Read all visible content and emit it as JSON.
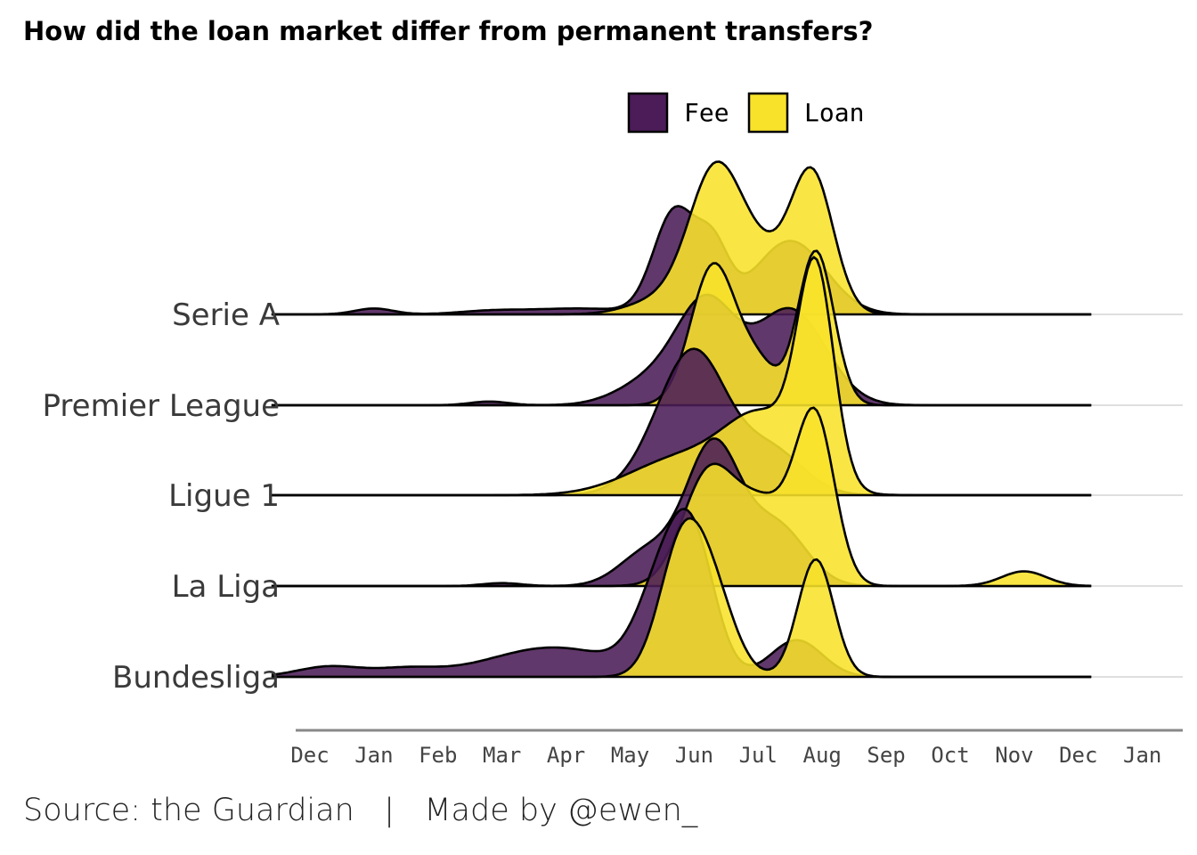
{
  "title": "How did the loan market differ from permanent transfers?",
  "caption": "Source: the Guardian   |   Made by @ewen_",
  "colors": {
    "fee": "#4b1c57",
    "loan": "#f8e22a",
    "outline": "#000000",
    "grid": "#cccccc",
    "axis": "#888888"
  },
  "chart_data": {
    "type": "ridgeline",
    "categories": [
      "Serie A",
      "Premier League",
      "Ligue 1",
      "La Liga",
      "Bundesliga"
    ],
    "x_ticks": [
      "Dec",
      "Jan",
      "Feb",
      "Mar",
      "Apr",
      "May",
      "Jun",
      "Jul",
      "Aug",
      "Sep",
      "Oct",
      "Nov",
      "Dec",
      "Jan"
    ],
    "xlim": [
      0.4,
      13.4
    ],
    "curve_range": [
      0.4,
      13.2
    ],
    "legend": {
      "position": "top",
      "entries": [
        "Fee",
        "Loan"
      ]
    },
    "series": [
      {
        "name": "Fee",
        "ridges": [
          {
            "category": "Serie A",
            "peaks": [
              [
                2.0,
                0.04,
                0.3
              ],
              [
                3.8,
                0.02,
                0.5
              ],
              [
                5.2,
                0.04,
                0.8
              ],
              [
                6.7,
                0.7,
                0.33
              ],
              [
                7.3,
                0.4,
                0.25
              ],
              [
                8.5,
                0.5,
                0.55
              ]
            ]
          },
          {
            "category": "Premier League",
            "peaks": [
              [
                3.8,
                0.025,
                0.3
              ],
              [
                6.4,
                0.18,
                0.55
              ],
              [
                7.2,
                0.65,
                0.45
              ],
              [
                8.5,
                0.65,
                0.55
              ]
            ]
          },
          {
            "category": "Ligue 1",
            "peaks": [
              [
                6.5,
                0.22,
                0.5
              ],
              [
                7.05,
                0.85,
                0.5
              ],
              [
                8.2,
                0.3,
                0.5
              ]
            ]
          },
          {
            "category": "La Liga",
            "peaks": [
              [
                4.0,
                0.02,
                0.3
              ],
              [
                6.3,
                0.24,
                0.45
              ],
              [
                7.3,
                0.95,
                0.42
              ],
              [
                8.3,
                0.4,
                0.45
              ]
            ]
          },
          {
            "category": "Bundesliga",
            "peaks": [
              [
                1.3,
                0.07,
                0.5
              ],
              [
                2.5,
                0.05,
                0.5
              ],
              [
                4.8,
                0.2,
                1.0
              ],
              [
                6.5,
                0.6,
                0.38
              ],
              [
                7.0,
                0.8,
                0.34
              ],
              [
                8.6,
                0.25,
                0.4
              ]
            ]
          }
        ]
      },
      {
        "name": "Loan",
        "ridges": [
          {
            "category": "Serie A",
            "peaks": [
              [
                6.5,
                0.1,
                0.5
              ],
              [
                7.3,
                0.85,
                0.4
              ],
              [
                8.0,
                0.4,
                0.5
              ],
              [
                8.85,
                0.9,
                0.33
              ]
            ]
          },
          {
            "category": "Premier League",
            "peaks": [
              [
                7.3,
                0.95,
                0.35
              ],
              [
                8.0,
                0.25,
                0.3
              ],
              [
                8.9,
                1.05,
                0.28
              ]
            ]
          },
          {
            "category": "Ligue 1",
            "peaks": [
              [
                6.8,
                0.25,
                0.8
              ],
              [
                8.1,
                0.5,
                0.6
              ],
              [
                8.9,
                1.4,
                0.28
              ]
            ]
          },
          {
            "category": "La Liga",
            "peaks": [
              [
                7.2,
                0.7,
                0.4
              ],
              [
                8.1,
                0.55,
                0.5
              ],
              [
                8.9,
                1.05,
                0.3
              ],
              [
                12.15,
                0.1,
                0.35
              ]
            ]
          },
          {
            "category": "Bundesliga",
            "peaks": [
              [
                6.8,
                0.85,
                0.35
              ],
              [
                7.3,
                0.5,
                0.35
              ],
              [
                8.9,
                0.8,
                0.28
              ]
            ]
          }
        ]
      }
    ]
  }
}
